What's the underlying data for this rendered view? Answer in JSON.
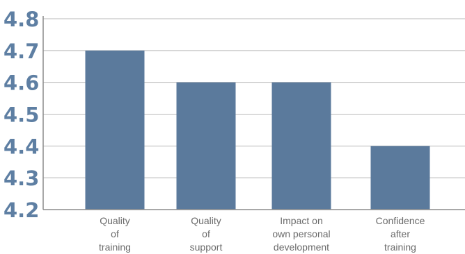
{
  "chart_data": {
    "type": "bar",
    "title": "",
    "xlabel": "",
    "ylabel": "",
    "categories": [
      [
        "Quality",
        "of",
        "training"
      ],
      [
        "Quality",
        "of",
        "support"
      ],
      [
        "Impact on",
        "own personal",
        "development"
      ],
      [
        "Confidence",
        "after",
        "training"
      ]
    ],
    "values": [
      4.7,
      4.6,
      4.6,
      4.4
    ],
    "ylim": [
      4.2,
      4.8
    ],
    "yticks": [
      "4.8",
      "4.7",
      "4.6",
      "4.5",
      "4.4",
      "4.3",
      "4.2"
    ],
    "grid": true,
    "legend": "none",
    "colors": {
      "bar": "#5b7a9c",
      "grid": "#b8b8b8",
      "axis": "#8c8c8c",
      "ytick_text": "#5e7fa3",
      "xtick_text": "#6a6a6a"
    }
  }
}
